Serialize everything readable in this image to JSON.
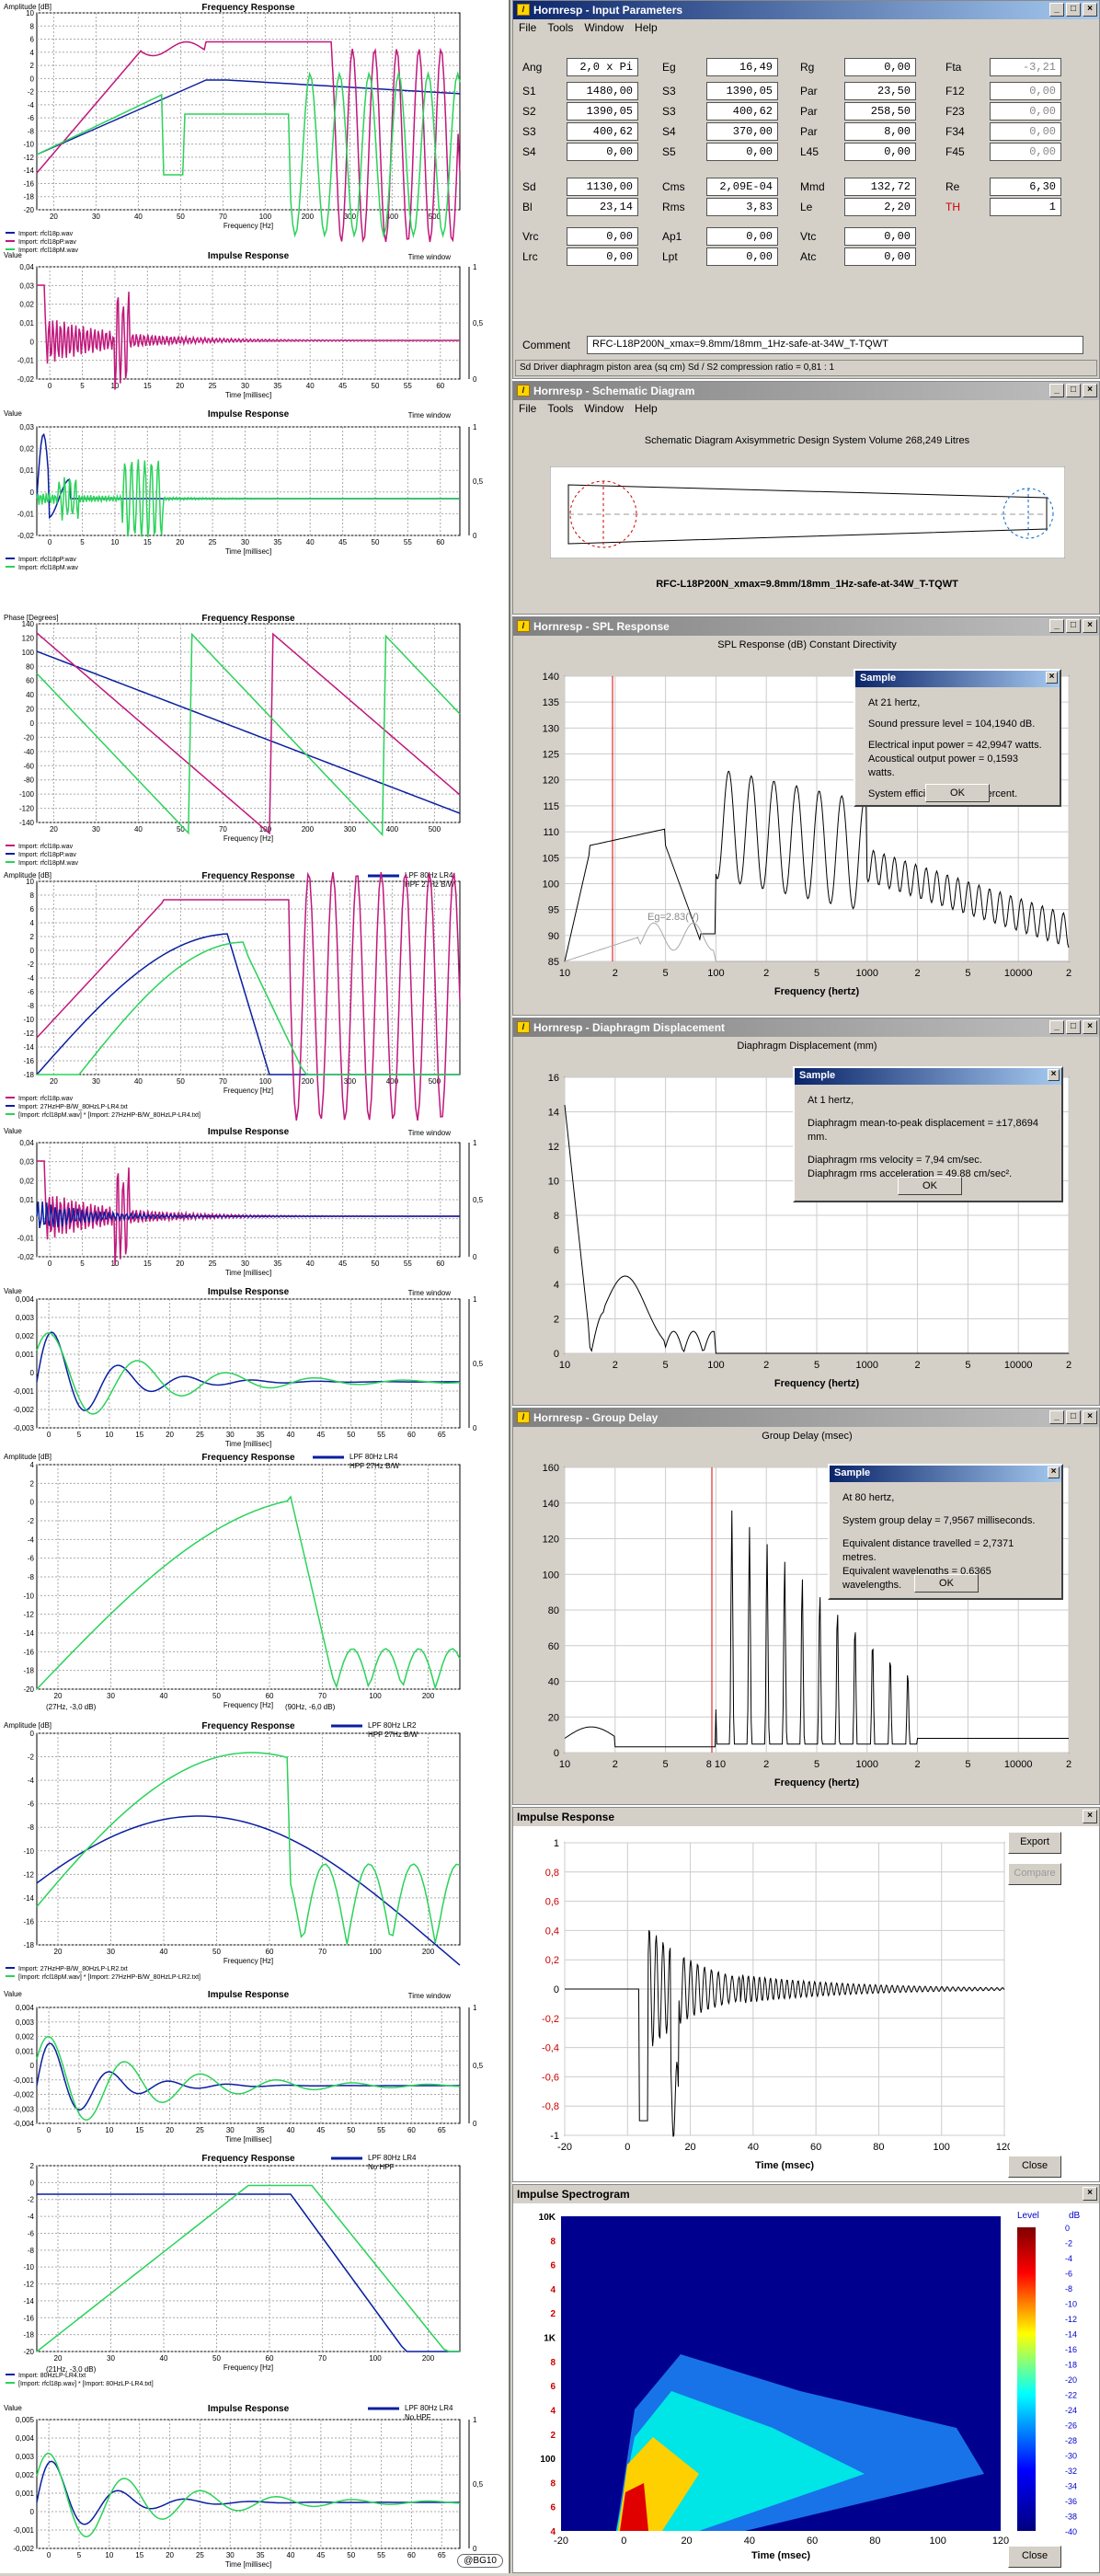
{
  "left": {
    "signature": "@BG10",
    "p1": {
      "ylab": "Amplitude [dB]",
      "title": "Frequency Response",
      "xlab": "Frequency [Hz]",
      "yt": [
        "10",
        "8",
        "6",
        "4",
        "2",
        "0",
        "-2",
        "-4",
        "-6",
        "-8",
        "-10",
        "-12",
        "-14",
        "-16",
        "-18",
        "-20"
      ],
      "xt": [
        "20",
        "30",
        "40",
        "50",
        "70",
        "100",
        "200",
        "300",
        "400",
        "500"
      ],
      "leg": [
        "Import: rfcl18p.wav",
        "Import: rfcl18pP.wav",
        "Import: rfcl18pM.wav"
      ]
    },
    "p2": {
      "ylab": "Value",
      "title": "Impulse Response",
      "tw": "Time window",
      "xlab": "Time [millisec]",
      "yt": [
        "0,04",
        "0,03",
        "0,02",
        "0,01",
        "0",
        "-0,01",
        "-0,02"
      ],
      "xt": [
        "0",
        "5",
        "10",
        "15",
        "20",
        "25",
        "30",
        "35",
        "40",
        "45",
        "50",
        "55",
        "60"
      ],
      "rt": [
        "1",
        "0,5",
        "0"
      ]
    },
    "p3": {
      "ylab": "Value",
      "title": "Impulse Response",
      "tw": "Time window",
      "xlab": "Time [millisec]",
      "yt": [
        "0,03",
        "0,02",
        "0,01",
        "0",
        "-0,01",
        "-0,02"
      ],
      "xt": [
        "0",
        "5",
        "10",
        "15",
        "20",
        "25",
        "30",
        "35",
        "40",
        "45",
        "50",
        "55",
        "60"
      ],
      "rt": [
        "1",
        "0,5",
        "0"
      ],
      "leg": [
        "Import: rfcl18pP.wav",
        "Import: rfcl18pM.wav"
      ]
    },
    "p4": {
      "ylab": "Phase [Degrees]",
      "title": "Frequency Response",
      "xlab": "Frequency [Hz]",
      "yt": [
        "140",
        "120",
        "100",
        "80",
        "60",
        "40",
        "20",
        "0",
        "-20",
        "-40",
        "-60",
        "-80",
        "-100",
        "-120",
        "-140"
      ],
      "xt": [
        "20",
        "30",
        "40",
        "50",
        "70",
        "100",
        "200",
        "300",
        "400",
        "500"
      ],
      "leg": [
        "Import: rfcl18p.wav",
        "Import: rfcl18pP.wav",
        "Import: rfcl18pM.wav"
      ]
    },
    "p5": {
      "ylab": "Amplitude [dB]",
      "title": "Frequency Response",
      "xlab": "Frequency [Hz]",
      "box": [
        "LPF 80Hz LR4",
        "HPF 27Hz B/W"
      ],
      "yt": [
        "10",
        "8",
        "6",
        "4",
        "2",
        "0",
        "-2",
        "-4",
        "-6",
        "-8",
        "-10",
        "-12",
        "-14",
        "-16",
        "-18"
      ],
      "xt": [
        "20",
        "30",
        "40",
        "50",
        "70",
        "100",
        "200",
        "300",
        "400",
        "500"
      ],
      "leg": [
        "Import: rfcl18p.wav",
        "Import: 27HzHP-B/W_80HzLP-LR4.txt",
        "[Import: rfcl18pM.wav] * [Import: 27HzHP-B/W_80HzLP-LR4.txt]"
      ]
    },
    "p6": {
      "ylab": "Value",
      "title": "Impulse Response",
      "tw": "Time window",
      "xlab": "Time [millisec]",
      "yt": [
        "0,04",
        "0,03",
        "0,02",
        "0,01",
        "0",
        "-0,01",
        "-0,02"
      ],
      "xt": [
        "0",
        "5",
        "10",
        "15",
        "20",
        "25",
        "30",
        "35",
        "40",
        "45",
        "50",
        "55",
        "60"
      ],
      "rt": [
        "1",
        "0,5",
        "0"
      ]
    },
    "p7": {
      "ylab": "Value",
      "title": "Impulse Response",
      "tw": "Time window",
      "xlab": "Time [millisec]",
      "yt": [
        "0,004",
        "0,003",
        "0,002",
        "0,001",
        "0",
        "-0,001",
        "-0,002",
        "-0,003"
      ],
      "xt": [
        "0",
        "5",
        "10",
        "15",
        "20",
        "25",
        "30",
        "35",
        "40",
        "45",
        "50",
        "55",
        "60",
        "65"
      ],
      "rt": [
        "1",
        "0,5",
        "0"
      ]
    },
    "p8": {
      "ylab": "Amplitude [dB]",
      "title": "Frequency Response",
      "xlab": "Frequency [Hz]",
      "box": [
        "LPF 80Hz LR4",
        "HPF 27Hz B/W"
      ],
      "yt": [
        "4",
        "2",
        "0",
        "-2",
        "-4",
        "-6",
        "-8",
        "-10",
        "-12",
        "-14",
        "-16",
        "-18",
        "-20"
      ],
      "xt": [
        "20",
        "30",
        "40",
        "50",
        "60",
        "70",
        "100",
        "200"
      ],
      "foot": [
        "(27Hz, -3,0 dB)",
        "(90Hz, -6,0 dB)"
      ]
    },
    "p9": {
      "ylab": "Amplitude [dB]",
      "title": "Frequency Response",
      "xlab": "Frequency [Hz]",
      "box": [
        "LPF 80Hz LR2",
        "HPF 27Hz B/W"
      ],
      "yt": [
        "0",
        "-2",
        "-4",
        "-6",
        "-8",
        "-10",
        "-12",
        "-14",
        "-16",
        "-18"
      ],
      "xt": [
        "20",
        "30",
        "40",
        "50",
        "60",
        "70",
        "100",
        "200"
      ],
      "leg": [
        "Import: 27HzHP-B/W_80HzLP-LR2.txt",
        "[Import: rfcl18pM.wav] * [Import: 27HzHP-B/W_80HzLP-LR2.txt]"
      ]
    },
    "p10": {
      "ylab": "Value",
      "title": "Impulse Response",
      "tw": "Time window",
      "xlab": "Time [millisec]",
      "yt": [
        "0,004",
        "0,003",
        "0,002",
        "0,001",
        "0",
        "-0,001",
        "-0,002",
        "-0,003",
        "-0,004"
      ],
      "xt": [
        "0",
        "5",
        "10",
        "15",
        "20",
        "25",
        "30",
        "35",
        "40",
        "45",
        "50",
        "55",
        "60",
        "65"
      ],
      "rt": [
        "1",
        "0,5",
        "0"
      ]
    },
    "p11": {
      "ylab": "",
      "title": "Frequency Response",
      "xlab": "Frequency [Hz]",
      "box": [
        "LPF 80Hz LR4",
        "No HPF"
      ],
      "yt": [
        "2",
        "0",
        "-2",
        "-4",
        "-6",
        "-8",
        "-10",
        "-12",
        "-14",
        "-16",
        "-18",
        "-20"
      ],
      "xt": [
        "20",
        "30",
        "40",
        "50",
        "60",
        "70",
        "100",
        "200"
      ],
      "leg": [
        "Import: 80HzLP-LR4.txt",
        "[Import: rfcl18p.wav] * [Import: 80HzLP-LR4.txt]"
      ],
      "foot": [
        "(21Hz, -3,0 dB)"
      ]
    },
    "p12": {
      "ylab": "Value",
      "title": "Impulse Response",
      "xlab": "Time [millisec]",
      "box": [
        "LPF 80Hz LR4",
        "No HPF"
      ],
      "yt": [
        "0,005",
        "0,004",
        "0,003",
        "0,002",
        "0,001",
        "0",
        "-0,001",
        "-0,002"
      ],
      "xt": [
        "0",
        "5",
        "10",
        "15",
        "20",
        "25",
        "30",
        "35",
        "40",
        "45",
        "50",
        "55",
        "60",
        "65"
      ],
      "rt": [
        "1",
        "0,5",
        "0"
      ]
    }
  },
  "input": {
    "title": "Hornresp - Input Parameters",
    "menu": [
      "File",
      "Tools",
      "Window",
      "Help"
    ],
    "rows": [
      [
        [
          "Ang",
          "2,0 x Pi"
        ],
        [
          "Eg",
          "16,49"
        ],
        [
          "Rg",
          "0,00"
        ],
        [
          "Fta",
          "-3,21"
        ]
      ],
      [
        [
          "S1",
          "1480,00"
        ],
        [
          "S3",
          "1390,05"
        ],
        [
          "Par",
          "23,50"
        ],
        [
          "F12",
          "0,00"
        ]
      ],
      [
        [
          "S2",
          "1390,05"
        ],
        [
          "S3",
          "400,62"
        ],
        [
          "Par",
          "258,50"
        ],
        [
          "F23",
          "0,00"
        ]
      ],
      [
        [
          "S3",
          "400,62"
        ],
        [
          "S4",
          "370,00"
        ],
        [
          "Par",
          "8,00"
        ],
        [
          "F34",
          "0,00"
        ]
      ],
      [
        [
          "S4",
          "0,00"
        ],
        [
          "S5",
          "0,00"
        ],
        [
          "L45",
          "0,00"
        ],
        [
          "F45",
          "0,00"
        ]
      ],
      [
        [
          "Sd",
          "1130,00"
        ],
        [
          "Cms",
          "2,09E-04"
        ],
        [
          "Mmd",
          "132,72"
        ],
        [
          "Re",
          "6,30"
        ]
      ],
      [
        [
          "Bl",
          "23,14"
        ],
        [
          "Rms",
          "3,83"
        ],
        [
          "Le",
          "2,20"
        ],
        [
          "TH",
          "1"
        ]
      ],
      [
        [
          "Vrc",
          "0,00"
        ],
        [
          "Ap1",
          "0,00"
        ],
        [
          "Vtc",
          "0,00"
        ]
      ],
      [
        [
          "Lrc",
          "0,00"
        ],
        [
          "Lpt",
          "0,00"
        ],
        [
          "Atc",
          "0,00"
        ]
      ]
    ],
    "comment_label": "Comment",
    "comment": "RFC-L18P200N_xmax=9.8mm/18mm_1Hz-safe-at-34W_T-TQWT",
    "status": "Sd   Driver diaphragm piston area (sq cm)   Sd / S2 compression ratio = 0,81 : 1"
  },
  "schem": {
    "title": "Hornresp - Schematic Diagram",
    "menu": [
      "File",
      "Tools",
      "Window",
      "Help"
    ],
    "head": "Schematic Diagram   Axisymmetric Design   System Volume 268,249 Litres",
    "foot": "RFC-L18P200N_xmax=9.8mm/18mm_1Hz-safe-at-34W_T-TQWT"
  },
  "spl": {
    "title": "Hornresp - SPL Response",
    "head": "SPL Response (dB)   Constant Directivity",
    "xlab": "Frequency (hertz)",
    "yt": [
      "140",
      "135",
      "130",
      "125",
      "120",
      "115",
      "110",
      "105",
      "100",
      "95",
      "90",
      "85"
    ],
    "xt": [
      "10",
      "2",
      "5",
      "100",
      "2",
      "5",
      "1000",
      "2",
      "5",
      "10000",
      "2"
    ],
    "eg": "Eg=2.83(V)",
    "dlg": {
      "title": "Sample",
      "lines": [
        "At 21 hertz,",
        "Sound pressure level = 104,1940 dB.",
        "Electrical input power = 42,9947 watts.",
        "Acoustical output power = 0,1593 watts.",
        "System efficiency = 0,37 percent."
      ],
      "ok": "OK"
    }
  },
  "disp": {
    "title": "Hornresp - Diaphragm Displacement",
    "head": "Diaphragm Displacement (mm)",
    "xlab": "Frequency (hertz)",
    "yt": [
      "16",
      "14",
      "12",
      "10",
      "8",
      "6",
      "4",
      "2",
      "0"
    ],
    "xt": [
      "10",
      "2",
      "5",
      "100",
      "2",
      "5",
      "1000",
      "2",
      "5",
      "10000",
      "2"
    ],
    "dlg": {
      "title": "Sample",
      "lines": [
        "At 1 hertz,",
        "Diaphragm mean-to-peak displacement = ±17,8694 mm.",
        "Diaphragm rms velocity = 7,94 cm/sec.",
        "Diaphragm rms acceleration = 49,88 cm/sec²."
      ],
      "ok": "OK"
    }
  },
  "gd": {
    "title": "Hornresp - Group Delay",
    "head": "Group Delay (msec)",
    "xlab": "Frequency (hertz)",
    "yt": [
      "160",
      "140",
      "120",
      "100",
      "80",
      "60",
      "40",
      "20",
      "0"
    ],
    "xt": [
      "10",
      "2",
      "5",
      "8 10",
      "2",
      "5",
      "1000",
      "2",
      "5",
      "10000",
      "2"
    ],
    "dlg": {
      "title": "Sample",
      "lines": [
        "At 80 hertz,",
        "System group delay = 7,9567 milliseconds.",
        "Equivalent distance travelled = 2,7371 metres.",
        "Equivalent wavelengths = 0,6365 wavelengths."
      ],
      "ok": "OK"
    }
  },
  "imp": {
    "title": "Impulse Response",
    "yt": [
      "1",
      "0,8",
      "0,6",
      "0,4",
      "0,2",
      "0",
      "-0,2",
      "-0,4",
      "-0,6",
      "-0,8",
      "-1"
    ],
    "xt": [
      "-20",
      "0",
      "20",
      "40",
      "60",
      "80",
      "100",
      "120"
    ],
    "xlab": "Time (msec)",
    "export": "Export",
    "compare": "Compare",
    "close": "Close"
  },
  "spec": {
    "title": "Impulse Spectrogram",
    "yt": [
      "10K",
      "8",
      "6",
      "4",
      "2",
      "1K",
      "8",
      "6",
      "4",
      "2",
      "100",
      "8",
      "6",
      "4"
    ],
    "xt": [
      "-20",
      "0",
      "20",
      "40",
      "60",
      "80",
      "100",
      "120"
    ],
    "xlab": "Time (msec)",
    "lvl": "Level",
    "unit": "dB",
    "cb": [
      "0",
      "-2",
      "-4",
      "-6",
      "-8",
      "-10",
      "-12",
      "-14",
      "-16",
      "-18",
      "-20",
      "-22",
      "-24",
      "-26",
      "-28",
      "-30",
      "-32",
      "-34",
      "-36",
      "-38",
      "-40"
    ],
    "close": "Close"
  }
}
